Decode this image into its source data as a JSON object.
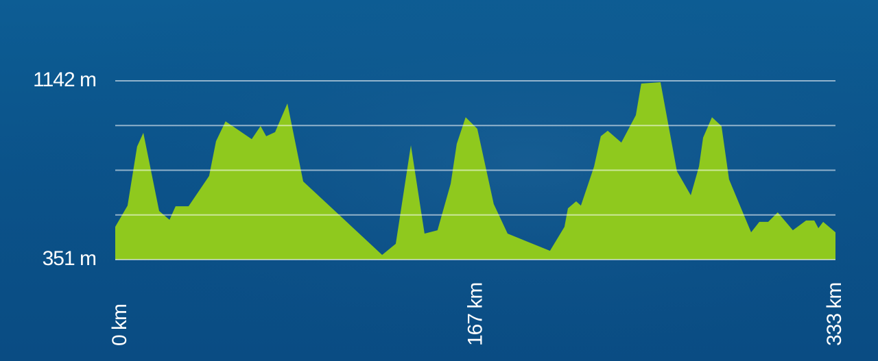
{
  "chart_data": {
    "type": "area",
    "x": [
      0,
      5.7,
      10.1,
      13.0,
      20.3,
      25.1,
      27.9,
      33.9,
      43.4,
      46.6,
      51.0,
      63.1,
      67.2,
      69.8,
      73.9,
      79.6,
      86.9,
      123.4,
      129.7,
      136.7,
      143.0,
      149.0,
      155.1,
      157.9,
      162.0,
      167.4,
      175.0,
      181.4,
      201.0,
      207.7,
      209.3,
      213.1,
      215.3,
      221.4,
      224.5,
      227.7,
      234.0,
      240.7,
      243.2,
      252.1,
      259.7,
      266.1,
      269.9,
      271.8,
      275.9,
      280.3,
      283.8,
      294.0,
      297.8,
      301.9,
      306.3,
      313.3,
      319.4,
      323.2,
      325.1,
      327.3,
      333.0
    ],
    "values": [
      496,
      590,
      851,
      912,
      566,
      527,
      587,
      587,
      721,
      875,
      963,
      884,
      942,
      897,
      915,
      1042,
      697,
      372,
      421,
      857,
      466,
      481,
      687,
      863,
      981,
      930,
      597,
      466,
      390,
      496,
      578,
      609,
      590,
      763,
      897,
      921,
      869,
      990,
      1130,
      1136,
      742,
      636,
      763,
      891,
      981,
      942,
      706,
      472,
      518,
      518,
      560,
      481,
      524,
      524,
      490,
      518,
      472
    ],
    "color": "#8fc91e",
    "xlim": [
      0,
      333
    ],
    "xticks": [
      {
        "value": 0,
        "label": "0 km"
      },
      {
        "value": 167,
        "label": "167 km"
      },
      {
        "value": 333,
        "label": "333 km"
      }
    ],
    "ylim": [
      351,
      1142
    ],
    "yticks": [
      {
        "value": 351,
        "label": "351 m"
      },
      {
        "value": 1142,
        "label": "1142 m"
      }
    ],
    "grid_lines": [
      548.75,
      746.5,
      944.25
    ]
  }
}
